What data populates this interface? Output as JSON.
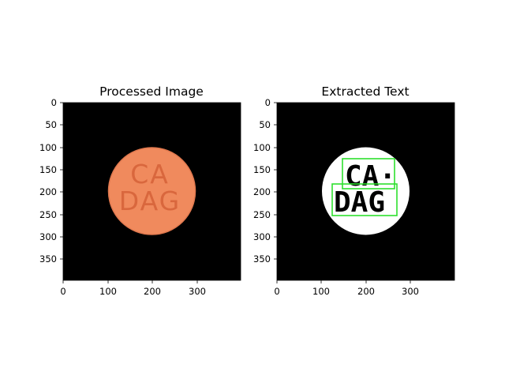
{
  "panels": [
    {
      "title": "Processed Image",
      "x_ticks": [
        "0",
        "100",
        "200",
        "300"
      ],
      "y_ticks": [
        "0",
        "50",
        "100",
        "150",
        "200",
        "250",
        "300",
        "350"
      ],
      "pill": {
        "line1": "CA",
        "line2": "DAG",
        "color": "#f08a5d",
        "edge_color": "#e0784e",
        "text_color": "#d9673d",
        "background": "#000000"
      }
    },
    {
      "title": "Extracted Text",
      "x_ticks": [
        "0",
        "100",
        "200",
        "300"
      ],
      "y_ticks": [
        "0",
        "50",
        "100",
        "150",
        "200",
        "250",
        "300",
        "350"
      ],
      "mask": {
        "line1": "CA·",
        "line2": "DAG",
        "circle_color": "#ffffff",
        "background": "#000000",
        "box_color": "#2ee02e"
      }
    }
  ]
}
